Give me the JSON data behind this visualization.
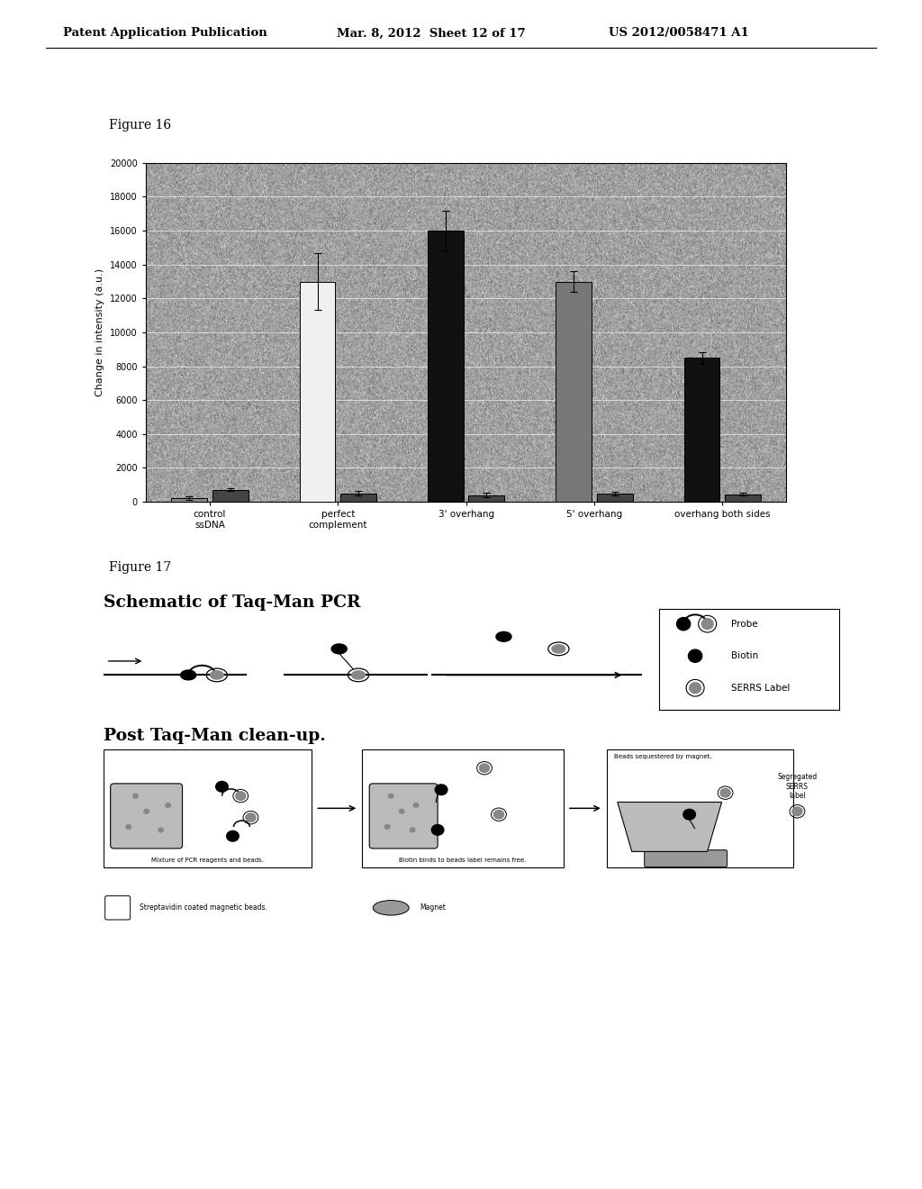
{
  "page_header_left": "Patent Application Publication",
  "page_header_mid": "Mar. 8, 2012  Sheet 12 of 17",
  "page_header_right": "US 2012/0058471 A1",
  "fig16_label": "Figure 16",
  "fig17_label": "Figure 17",
  "bar_categories": [
    "control\nssDNA",
    "perfect\ncomplement",
    "3' overhang",
    "5' overhang",
    "overhang both sides"
  ],
  "bar_values_main": [
    200,
    13000,
    16000,
    13000,
    8500
  ],
  "bar_values_small": [
    700,
    500,
    400,
    500,
    450
  ],
  "bar_colors_main": [
    "#888888",
    "#f0f0f0",
    "#111111",
    "#777777",
    "#111111"
  ],
  "bar_colors_small": [
    "#444444",
    "#444444",
    "#444444",
    "#444444",
    "#444444"
  ],
  "error_main": [
    100,
    1700,
    1200,
    600,
    350
  ],
  "error_small": [
    80,
    150,
    120,
    100,
    100
  ],
  "ylabel": "Change in intensity (a.u.)",
  "ylim": [
    0,
    20000
  ],
  "yticks": [
    0,
    2000,
    4000,
    6000,
    8000,
    10000,
    12000,
    14000,
    16000,
    18000,
    20000
  ],
  "plot_bg_noise_color": "#a0a0a0",
  "schematic_title": "Schematic of Taq-Man PCR",
  "post_cleanup_title": "Post Taq-Man clean-up.",
  "legend_probe": "Probe",
  "legend_biotin": "Biotin",
  "legend_serrs": "SERRS Label"
}
